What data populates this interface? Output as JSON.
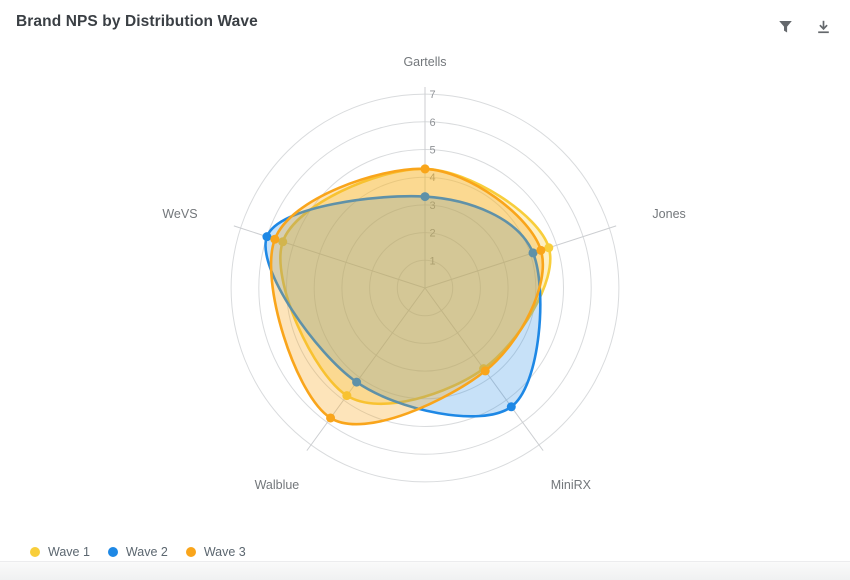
{
  "header": {
    "title": "Brand NPS by Distribution Wave",
    "actions": [
      {
        "icon": "filter-icon",
        "label": "Filter"
      },
      {
        "icon": "download-icon",
        "label": "Download"
      }
    ]
  },
  "chart_data": {
    "type": "radar",
    "title": "Brand NPS by Distribution Wave",
    "categories": [
      "Gartells",
      "Jones",
      "MiniRX",
      "Walblue",
      "WeVS"
    ],
    "series": [
      {
        "name": "Wave 1",
        "color": "#F8CE3B",
        "fill_opacity": 0.3,
        "values": [
          4.3,
          4.7,
          3.6,
          4.8,
          5.4
        ]
      },
      {
        "name": "Wave 2",
        "color": "#1E88E5",
        "fill_opacity": 0.25,
        "values": [
          3.3,
          4.1,
          5.3,
          4.2,
          6.0
        ]
      },
      {
        "name": "Wave 3",
        "color": "#F9A51B",
        "fill_opacity": 0.3,
        "values": [
          4.3,
          4.4,
          3.7,
          5.8,
          5.7
        ]
      }
    ],
    "radial_axis": {
      "min": 0,
      "max": 7,
      "tick_interval": 1,
      "tick_labels": [
        "1",
        "2",
        "3",
        "4",
        "5",
        "6",
        "7"
      ]
    },
    "grid": "circular-rings-with-spokes",
    "curve": "smooth-spline",
    "legend_position": "bottom-left",
    "colors": {
      "grid_line": "#d9dbdd",
      "spoke_line": "#ccced1",
      "tick_label": "#8f9296",
      "category_label": "#73777b"
    }
  }
}
